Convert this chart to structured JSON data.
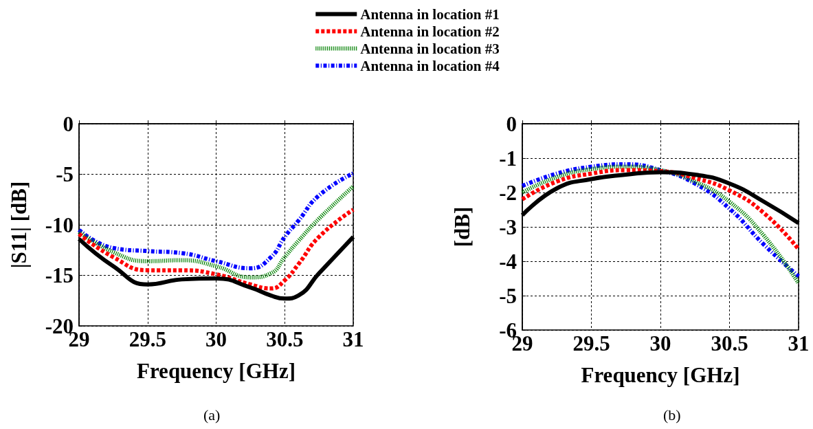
{
  "chart_data": [
    {
      "type": "line",
      "xlabel": "Frequency [GHz]",
      "ylabel": "|S11| [dB]",
      "annotations": [
        "(a)"
      ],
      "xlim": [
        29,
        31
      ],
      "xticks": [
        29,
        29.5,
        30,
        30.5,
        31
      ],
      "ylim": [
        -20,
        0
      ],
      "yticks": [
        -20,
        -15,
        -10,
        -5,
        0
      ],
      "grid": true,
      "legend": "top",
      "marker": "none",
      "x": [
        29,
        29.25,
        29.5,
        29.75,
        30,
        30.25,
        30.4,
        30.5,
        30.6,
        30.75,
        31
      ],
      "series": [
        {
          "name": "Antenna in location #1",
          "color": "#000000",
          "line_style": "solid",
          "values": [
            -11.4,
            -14.1,
            -15.9,
            -15.4,
            -15.3,
            -16.2,
            -17.0,
            -17.3,
            -17.0,
            -14.8,
            -11.2
          ]
        },
        {
          "name": "Antenna in location #2",
          "color": "#ff0000",
          "line_style": "dashed",
          "values": [
            -10.9,
            -13.2,
            -14.5,
            -14.5,
            -14.9,
            -15.9,
            -16.3,
            -15.5,
            -13.9,
            -11.2,
            -8.5
          ]
        },
        {
          "name": "Antenna in location #3",
          "color": "#008000",
          "line_style": "dotted",
          "values": [
            -10.7,
            -12.7,
            -13.6,
            -13.5,
            -14.1,
            -15.2,
            -14.8,
            -13.2,
            -11.6,
            -9.4,
            -6.2
          ]
        },
        {
          "name": "Antenna in location #4",
          "color": "#0000ff",
          "line_style": "dashdot",
          "values": [
            -10.5,
            -12.3,
            -12.6,
            -12.8,
            -13.6,
            -14.3,
            -13.2,
            -11.2,
            -9.6,
            -7.1,
            -4.9
          ]
        }
      ]
    },
    {
      "type": "line",
      "xlabel": "Frequency [GHz]",
      "ylabel": "[dB]",
      "annotations": [
        "(b)"
      ],
      "xlim": [
        29,
        31
      ],
      "xticks": [
        29,
        29.5,
        30,
        30.5,
        31
      ],
      "ylim": [
        -6,
        0
      ],
      "yticks": [
        -6,
        -5,
        -4,
        -3,
        -2,
        -1,
        0
      ],
      "grid": true,
      "marker": "none",
      "x": [
        29,
        29.25,
        29.5,
        29.75,
        30,
        30.25,
        30.5,
        30.75,
        31
      ],
      "series": [
        {
          "color": "#000000",
          "line_style": "solid",
          "values": [
            -2.66,
            -1.88,
            -1.61,
            -1.48,
            -1.41,
            -1.48,
            -1.74,
            -2.27,
            -2.89
          ]
        },
        {
          "color": "#ff0000",
          "line_style": "dashed",
          "values": [
            -2.2,
            -1.68,
            -1.45,
            -1.35,
            -1.38,
            -1.58,
            -1.94,
            -2.6,
            -3.65
          ]
        },
        {
          "color": "#008000",
          "line_style": "dotted",
          "values": [
            -2.0,
            -1.55,
            -1.32,
            -1.25,
            -1.35,
            -1.68,
            -2.27,
            -3.26,
            -4.64
          ]
        },
        {
          "color": "#0000ff",
          "line_style": "dashdot",
          "values": [
            -1.81,
            -1.45,
            -1.25,
            -1.18,
            -1.35,
            -1.74,
            -2.47,
            -3.52,
            -4.44
          ]
        }
      ]
    }
  ]
}
